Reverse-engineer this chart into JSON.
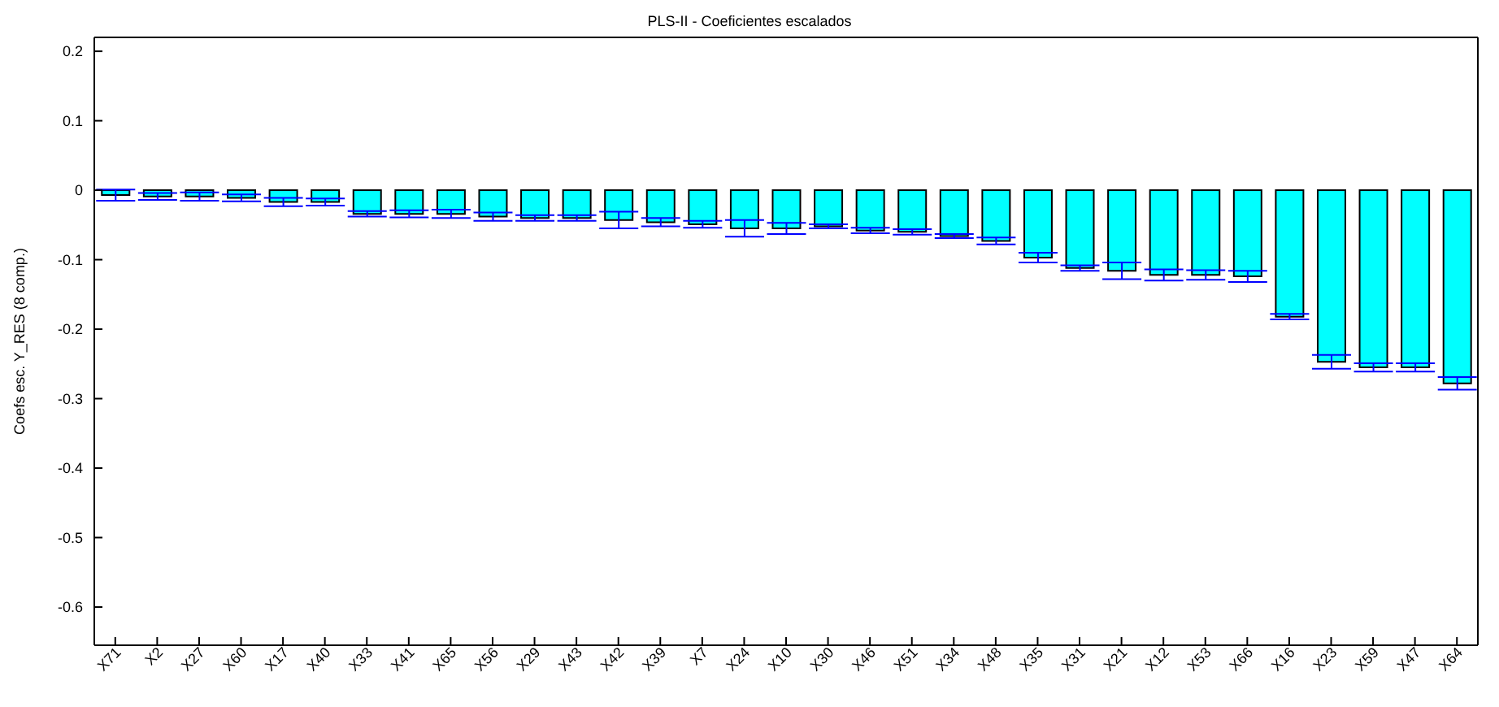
{
  "chart_data": {
    "type": "bar",
    "title": "PLS-II - Coeficientes escalados",
    "ylabel": "Coefs esc. Y_RES (8 comp.)",
    "categories": [
      "X71",
      "X2",
      "X27",
      "X60",
      "X17",
      "X40",
      "X33",
      "X41",
      "X65",
      "X56",
      "X29",
      "X43",
      "X42",
      "X39",
      "X7",
      "X24",
      "X10",
      "X30",
      "X46",
      "X51",
      "X34",
      "X48",
      "X35",
      "X31",
      "X21",
      "X12",
      "X53",
      "X66",
      "X16",
      "X23",
      "X59",
      "X47",
      "X64"
    ],
    "values": [
      -0.007,
      -0.009,
      -0.009,
      -0.011,
      -0.017,
      -0.017,
      -0.034,
      -0.034,
      -0.034,
      -0.038,
      -0.04,
      -0.04,
      -0.043,
      -0.046,
      -0.049,
      -0.055,
      -0.055,
      -0.052,
      -0.058,
      -0.06,
      -0.066,
      -0.073,
      -0.097,
      -0.112,
      -0.116,
      -0.122,
      -0.122,
      -0.124,
      -0.182,
      -0.247,
      -0.255,
      -0.255,
      -0.278
    ],
    "errors": [
      0.008,
      0.005,
      0.006,
      0.005,
      0.006,
      0.005,
      0.004,
      0.005,
      0.006,
      0.006,
      0.004,
      0.004,
      0.012,
      0.006,
      0.005,
      0.012,
      0.008,
      0.003,
      0.004,
      0.004,
      0.003,
      0.005,
      0.007,
      0.004,
      0.012,
      0.008,
      0.007,
      0.008,
      0.004,
      0.01,
      0.006,
      0.006,
      0.009
    ],
    "color": "#00ffff",
    "ylim": [
      -0.655,
      0.22
    ],
    "yticks": [
      -0.6,
      -0.5,
      -0.4,
      -0.3,
      -0.2,
      -0.1,
      0,
      0.1,
      0.2
    ],
    "grid": false
  }
}
